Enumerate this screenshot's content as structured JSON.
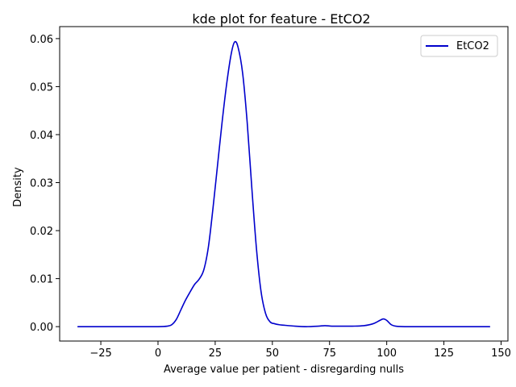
{
  "chart_data": {
    "type": "line",
    "title": "kde plot for feature -  EtCO2",
    "xlabel": "Average value per patient - disregarding nulls",
    "ylabel": "Density",
    "xlim": [
      -43,
      153
    ],
    "ylim": [
      -0.003,
      0.0625
    ],
    "x_ticks": [
      -25,
      0,
      25,
      50,
      75,
      100,
      125,
      150
    ],
    "y_ticks": [
      0.0,
      0.01,
      0.02,
      0.03,
      0.04,
      0.05,
      0.06
    ],
    "x_tick_labels": [
      "−25",
      "0",
      "25",
      "50",
      "75",
      "100",
      "125",
      "150"
    ],
    "y_tick_labels": [
      "0.00",
      "0.01",
      "0.02",
      "0.03",
      "0.04",
      "0.05",
      "0.06"
    ],
    "grid": false,
    "legend_position": "top-right",
    "series": [
      {
        "name": "EtCO2",
        "color": "#0000cc",
        "x": [
          -35,
          -20,
          -5,
          0,
          4,
          6,
          8,
          10,
          12,
          14,
          16,
          18,
          20,
          22,
          24,
          26,
          28,
          30,
          32,
          33.5,
          35,
          37,
          39,
          41,
          43,
          45,
          47,
          49,
          51,
          53,
          55,
          60,
          65,
          70,
          73,
          76,
          80,
          85,
          90,
          94,
          97,
          98.5,
          100,
          102,
          104,
          108,
          120,
          135,
          145
        ],
        "y": [
          0.0,
          0.0,
          0.0,
          0.0,
          0.0001,
          0.0004,
          0.0015,
          0.0035,
          0.0055,
          0.0072,
          0.0088,
          0.0099,
          0.0118,
          0.0165,
          0.0245,
          0.0335,
          0.0425,
          0.0505,
          0.0568,
          0.0593,
          0.0582,
          0.0528,
          0.0425,
          0.029,
          0.0165,
          0.0075,
          0.0028,
          0.001,
          0.0006,
          0.0004,
          0.0003,
          0.0001,
          0.0,
          0.0001,
          0.0002,
          0.0001,
          0.0001,
          0.0001,
          0.0002,
          0.0006,
          0.0013,
          0.0016,
          0.0013,
          0.0004,
          0.0001,
          0.0,
          0.0,
          0.0,
          0.0
        ]
      }
    ]
  }
}
